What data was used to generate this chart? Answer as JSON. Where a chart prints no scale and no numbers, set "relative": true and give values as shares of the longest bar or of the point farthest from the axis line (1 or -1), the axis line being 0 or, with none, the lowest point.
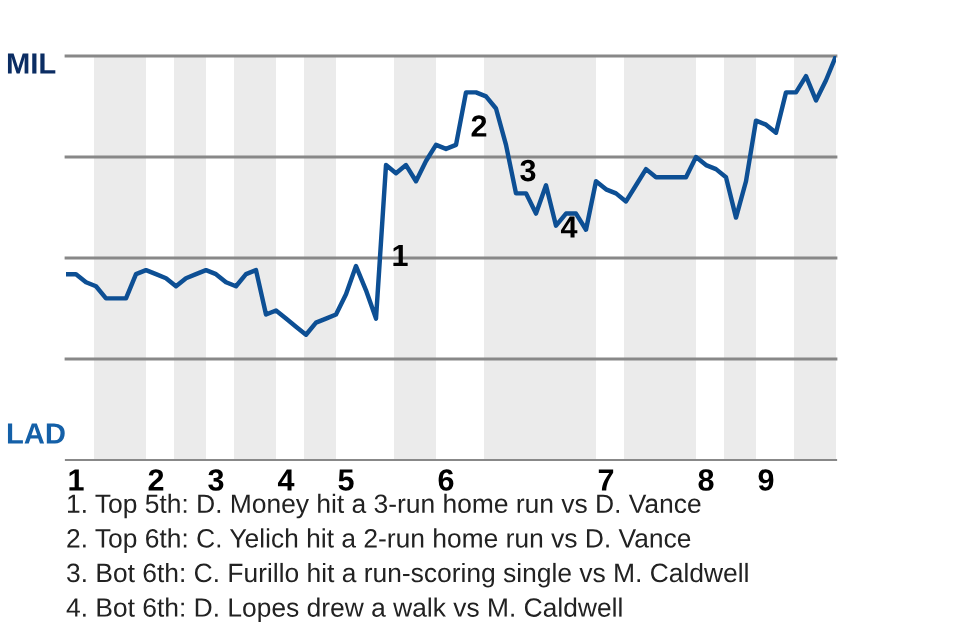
{
  "chart_data": {
    "type": "line",
    "relative": true,
    "categories": [
      null,
      "1",
      null,
      null,
      null,
      null,
      null,
      null,
      null,
      "2",
      null,
      null,
      null,
      null,
      null,
      "3",
      null,
      null,
      null,
      null,
      null,
      null,
      "4",
      null,
      null,
      null,
      null,
      null,
      "5",
      null,
      null,
      null,
      null,
      null,
      null,
      null,
      null,
      null,
      "6",
      null,
      null,
      null,
      null,
      null,
      null,
      null,
      null,
      null,
      null,
      null,
      null,
      null,
      null,
      null,
      "7",
      null,
      null,
      null,
      null,
      null,
      null,
      null,
      null,
      null,
      "8",
      null,
      null,
      null,
      null,
      null,
      "9",
      null,
      null,
      null,
      null,
      null,
      null,
      null
    ],
    "series": [
      {
        "color": "#0d4f94",
        "values": [
          0.46,
          0.46,
          0.44,
          0.43,
          0.4,
          0.4,
          0.4,
          0.46,
          0.47,
          0.46,
          0.45,
          0.43,
          0.45,
          0.46,
          0.47,
          0.46,
          0.44,
          0.43,
          0.46,
          0.47,
          0.36,
          0.37,
          0.35,
          0.33,
          0.31,
          0.34,
          0.35,
          0.36,
          0.41,
          0.48,
          0.42,
          0.35,
          0.73,
          0.71,
          0.73,
          0.69,
          0.74,
          0.78,
          0.77,
          0.78,
          0.91,
          0.91,
          0.9,
          0.87,
          0.78,
          0.66,
          0.66,
          0.61,
          0.68,
          0.58,
          0.61,
          0.61,
          0.57,
          0.69,
          0.67,
          0.66,
          0.64,
          0.68,
          0.72,
          0.7,
          0.7,
          0.7,
          0.7,
          0.75,
          0.73,
          0.72,
          0.7,
          0.6,
          0.69,
          0.84,
          0.83,
          0.81,
          0.91,
          0.91,
          0.95,
          0.89,
          0.94,
          1.0
        ]
      }
    ],
    "ref_lines": [
      {
        "axis": "y",
        "value": 0.25,
        "color": "#888888"
      },
      {
        "axis": "y",
        "value": 0.5,
        "color": "#888888"
      },
      {
        "axis": "y",
        "value": 0.75,
        "color": "#888888"
      },
      {
        "axis": "y",
        "value": 1,
        "color": "#888888"
      }
    ],
    "annotations": [
      "MIL",
      "LAD",
      "1",
      "2",
      "3",
      "4",
      "1. Top 5th: D. Money hit a 3-run home run vs D. Vance",
      "2. Top 6th: C. Yelich hit a 2-run home run vs D. Vance",
      "3. Bot 6th: C. Furillo hit a run-scoring single vs M. Caldwell",
      "4. Bot 6th: D. Lopes drew a walk vs M. Caldwell"
    ],
    "line_style": "solid",
    "marker": "none",
    "grid": false,
    "legend": false
  }
}
